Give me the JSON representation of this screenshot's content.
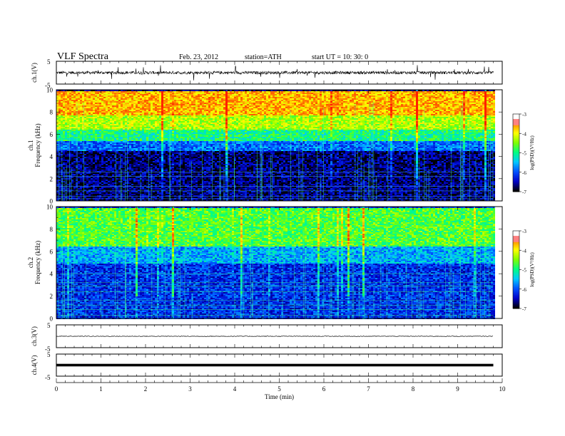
{
  "header": {
    "title": "VLF  Spectra",
    "date": "Feb. 23, 2012",
    "station": "station=ATH",
    "start": "start  UT =    10: 30: 0"
  },
  "chart_data": [
    {
      "type": "line",
      "name": "ch1-waveform",
      "ylabel": "ch.1(V)",
      "ylim": [
        -5,
        5
      ],
      "yticks": [
        "5",
        "-5"
      ],
      "baseline_v": 0,
      "color": "#000000"
    },
    {
      "type": "heatmap",
      "name": "ch1-spectrogram",
      "ylabel": "ch.1\nFrequency  (kHz)",
      "ylim": [
        0,
        10
      ],
      "yticks": [
        "0",
        "2",
        "4",
        "6",
        "8",
        "10"
      ],
      "bands_khz": [
        {
          "from": 0,
          "to": 4.5,
          "log_psd": -6.7
        },
        {
          "from": 4.5,
          "to": 5.5,
          "log_psd": -5.9
        },
        {
          "from": 5.5,
          "to": 6.5,
          "log_psd": -5.0
        },
        {
          "from": 6.5,
          "to": 7.8,
          "log_psd": -4.3
        },
        {
          "from": 7.8,
          "to": 10,
          "log_psd": -3.7
        }
      ],
      "colorbar": {
        "label": "log(PSD)(V²/Hz)",
        "ticks": [
          "-3",
          "-4",
          "-5",
          "-6",
          "-7"
        ],
        "range": [
          -7,
          -3
        ]
      }
    },
    {
      "type": "heatmap",
      "name": "ch2-spectrogram",
      "ylabel": "ch.2\nFrequency  (kHz)",
      "ylim": [
        0,
        10
      ],
      "yticks": [
        "0",
        "2",
        "4",
        "6",
        "8",
        "10"
      ],
      "bands_khz": [
        {
          "from": 0,
          "to": 5,
          "log_psd": -6.2
        },
        {
          "from": 5,
          "to": 6.5,
          "log_psd": -5.6
        },
        {
          "from": 6.5,
          "to": 10,
          "log_psd": -4.7
        }
      ],
      "colorbar": {
        "label": "log(PSD)(V²/Hz)",
        "ticks": [
          "-3",
          "-4",
          "-5",
          "-6",
          "-7"
        ],
        "range": [
          -7,
          -3
        ]
      }
    },
    {
      "type": "line",
      "name": "ch3-waveform",
      "ylabel": "ch.3(V)",
      "ylim": [
        -5,
        5
      ],
      "yticks": [
        "5",
        "-5"
      ],
      "baseline_v": 0,
      "color": "#000000"
    },
    {
      "type": "line",
      "name": "ch4-waveform",
      "ylabel": "ch.4(V)",
      "ylim": [
        -5,
        5
      ],
      "yticks": [
        "5",
        "-5"
      ],
      "baseline_v": 0,
      "color": "#000000"
    }
  ],
  "x_axis": {
    "label": "Time  (min)",
    "ticks": [
      "0",
      "1",
      "2",
      "3",
      "4",
      "5",
      "6",
      "7",
      "8",
      "9",
      "10"
    ],
    "xlim": [
      0,
      10
    ],
    "data_end_min": 9.8
  },
  "colormap": [
    "#000000",
    "#0000c8",
    "#0050ff",
    "#00c8ff",
    "#00ff80",
    "#80ff00",
    "#ffff00",
    "#ff8000",
    "#ff2000",
    "#ffffff"
  ]
}
